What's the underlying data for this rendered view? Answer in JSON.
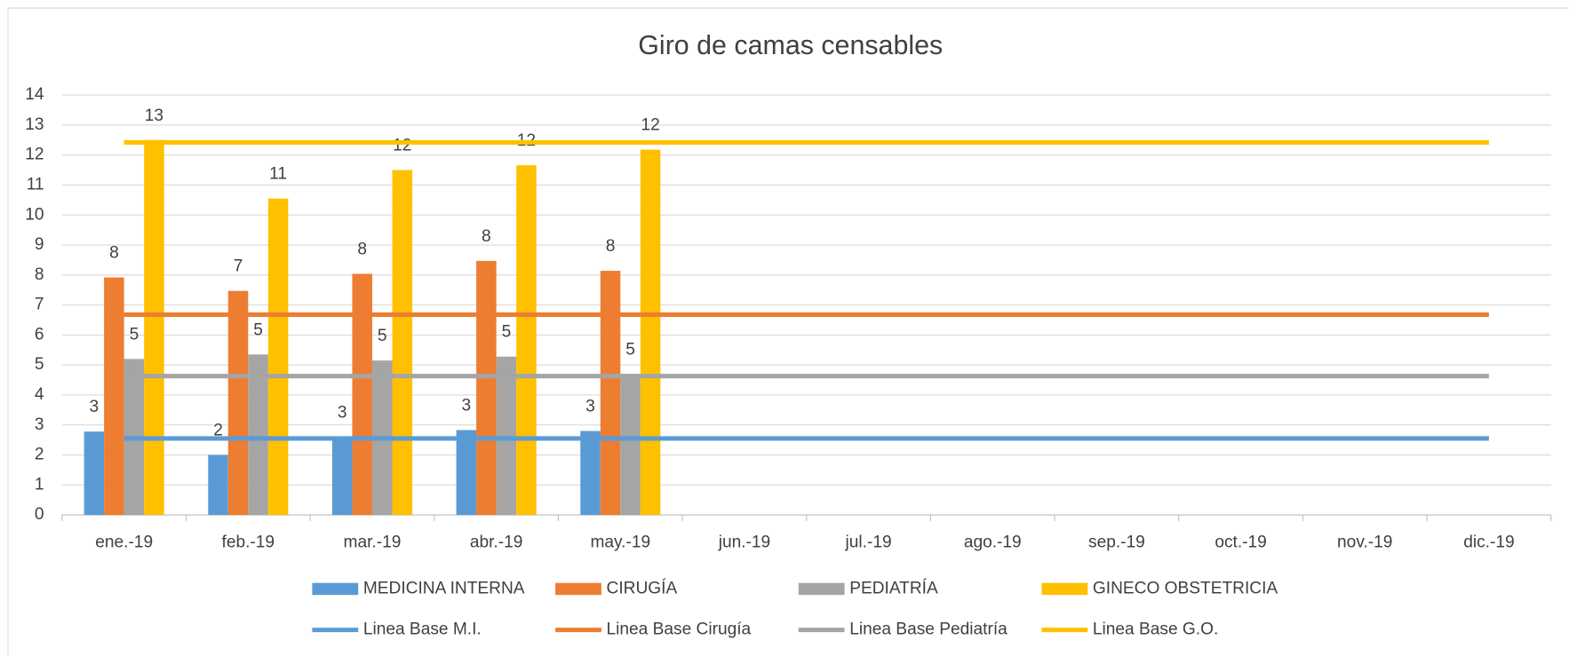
{
  "chart_data": {
    "type": "bar",
    "title": "Giro de camas censables",
    "categories": [
      "ene.-19",
      "feb.-19",
      "mar.-19",
      "abr.-19",
      "may.-19",
      "jun.-19",
      "jul.-19",
      "ago.-19",
      "sep.-19",
      "oct.-19",
      "nov.-19",
      "dic.-19"
    ],
    "series": [
      {
        "name": "MEDICINA INTERNA",
        "type": "bar",
        "color": "#5b9bd5",
        "values": [
          2.78,
          2.0,
          2.6,
          2.83,
          2.8,
          null,
          null,
          null,
          null,
          null,
          null,
          null
        ],
        "value_labels": [
          "3",
          "2",
          "3",
          "3",
          "3",
          null,
          null,
          null,
          null,
          null,
          null,
          null
        ]
      },
      {
        "name": "CIRUGÍA",
        "type": "bar",
        "color": "#ed7d31",
        "values": [
          7.92,
          7.47,
          8.04,
          8.47,
          8.14,
          null,
          null,
          null,
          null,
          null,
          null,
          null
        ],
        "value_labels": [
          "8",
          "7",
          "8",
          "8",
          "8",
          null,
          null,
          null,
          null,
          null,
          null,
          null
        ]
      },
      {
        "name": "PEDIATRÍA",
        "type": "bar",
        "color": "#a5a5a5",
        "values": [
          5.2,
          5.35,
          5.15,
          5.28,
          4.7,
          null,
          null,
          null,
          null,
          null,
          null,
          null
        ],
        "value_labels": [
          "5",
          "5",
          "5",
          "5",
          "5",
          null,
          null,
          null,
          null,
          null,
          null,
          null
        ]
      },
      {
        "name": "GINECO OBSTETRICIA",
        "type": "bar",
        "color": "#ffc000",
        "values": [
          12.5,
          10.55,
          11.5,
          11.66,
          12.18,
          null,
          null,
          null,
          null,
          null,
          null,
          null
        ],
        "value_labels": [
          "13",
          "11",
          "12",
          "12",
          "12",
          null,
          null,
          null,
          null,
          null,
          null,
          null
        ]
      },
      {
        "name": "Linea Base M.I.",
        "type": "line",
        "color": "#5b9bd5",
        "values": [
          2.55,
          2.55,
          2.55,
          2.55,
          2.55,
          2.55,
          2.55,
          2.55,
          2.55,
          2.55,
          2.55,
          2.55
        ]
      },
      {
        "name": "Linea Base Cirugía",
        "type": "line",
        "color": "#ed7d31",
        "values": [
          6.68,
          6.68,
          6.68,
          6.68,
          6.68,
          6.68,
          6.68,
          6.68,
          6.68,
          6.68,
          6.68,
          6.68
        ]
      },
      {
        "name": "Linea Base Pediatría",
        "type": "line",
        "color": "#a5a5a5",
        "values": [
          4.63,
          4.63,
          4.63,
          4.63,
          4.63,
          4.63,
          4.63,
          4.63,
          4.63,
          4.63,
          4.63,
          4.63
        ]
      },
      {
        "name": "Linea Base G.O.",
        "type": "line",
        "color": "#ffc000",
        "values": [
          12.42,
          12.42,
          12.42,
          12.42,
          12.42,
          12.42,
          12.42,
          12.42,
          12.42,
          12.42,
          12.42,
          12.42
        ]
      }
    ],
    "ylim": [
      0,
      14
    ],
    "yticks": [
      0,
      1,
      2,
      3,
      4,
      5,
      6,
      7,
      8,
      9,
      10,
      11,
      12,
      13,
      14
    ],
    "grid": true,
    "legend": "bottom"
  }
}
